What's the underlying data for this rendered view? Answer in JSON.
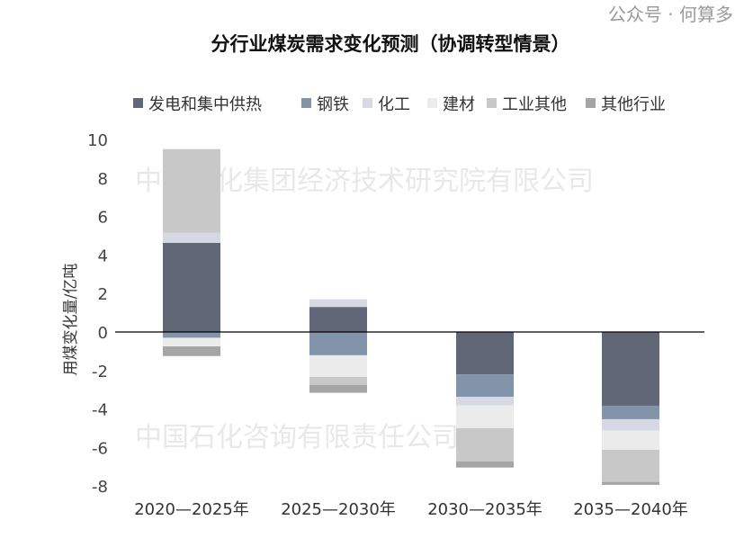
{
  "chart_data": {
    "type": "bar",
    "stacked": true,
    "title": "分行业煤炭需求变化预测（协调转型情景）",
    "xlabel": "",
    "ylabel": "用煤变化量/亿吨",
    "ylim": [
      -8,
      10
    ],
    "yticks": [
      10,
      8,
      6,
      4,
      2,
      0,
      -2,
      -4,
      -6,
      -8
    ],
    "ytick_labels": [
      "10",
      "8",
      "6",
      "4",
      "2",
      "0",
      "-2",
      "-4",
      "-6",
      "-8"
    ],
    "categories": [
      "2020—2025年",
      "2025—2030年",
      "2030—2035年",
      "2035—2040年"
    ],
    "legend_position": "top",
    "grid": false,
    "series": [
      {
        "name": "发电和集中供热",
        "color": "#626778",
        "values": [
          4.63,
          1.3,
          -2.2,
          -3.83
        ]
      },
      {
        "name": "钢铁",
        "color": "#8194aa",
        "values": [
          -0.3,
          -1.21,
          -1.17,
          -0.7
        ]
      },
      {
        "name": "化工",
        "color": "#d6d8e4",
        "values": [
          0.52,
          0.4,
          -0.45,
          -0.59
        ]
      },
      {
        "name": "建材",
        "color": "#ebebeb",
        "values": [
          -0.45,
          -1.12,
          -1.18,
          -1.0
        ]
      },
      {
        "name": "工业其他",
        "color": "#c8c8c8",
        "values": [
          4.35,
          -0.42,
          -1.73,
          -1.67
        ]
      },
      {
        "name": "其他行业",
        "color": "#a5a5a5",
        "values": [
          -0.5,
          -0.41,
          -0.31,
          -0.15
        ]
      }
    ]
  },
  "watermarks": [
    "中国石化集团经济技术研究院有限公司",
    "中国石化咨询有限责任公司"
  ],
  "publisher": "公众号 · 何算多"
}
